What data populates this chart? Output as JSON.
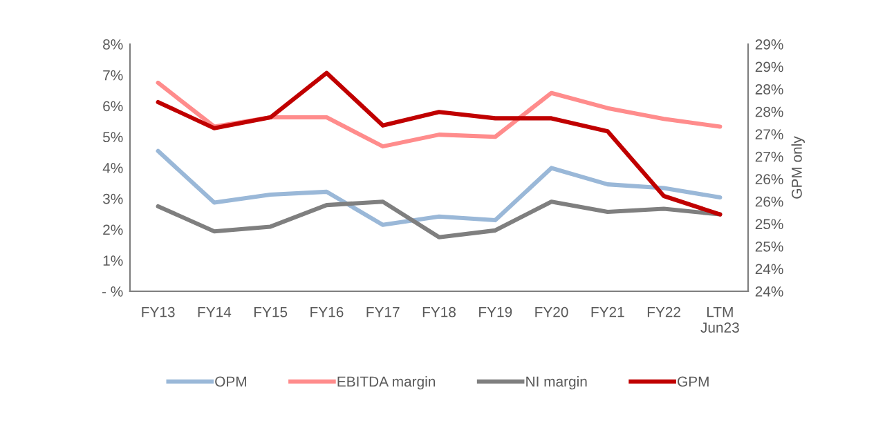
{
  "chart_data": {
    "type": "line",
    "categories": [
      "FY13",
      "FY14",
      "FY15",
      "FY16",
      "FY17",
      "FY18",
      "FY19",
      "FY20",
      "FY21",
      "FY22",
      "LTM\nJun23"
    ],
    "series": [
      {
        "name": "OPM",
        "color": "#9ab8d8",
        "values": [
          4.54,
          2.87,
          3.13,
          3.22,
          2.15,
          2.42,
          2.3,
          3.99,
          3.46,
          3.34,
          3.04
        ]
      },
      {
        "name": "EBITDA margin",
        "color": "#ff8c8c",
        "values": [
          6.75,
          5.33,
          5.63,
          5.63,
          4.69,
          5.07,
          5.0,
          6.42,
          5.93,
          5.58,
          5.33
        ]
      },
      {
        "name": "NI margin",
        "color": "#7f7f7f",
        "values": [
          2.75,
          1.94,
          2.09,
          2.79,
          2.9,
          1.75,
          1.97,
          2.9,
          2.57,
          2.67,
          2.49
        ]
      },
      {
        "name": "GPM",
        "color": "#c00000",
        "axis": "y2",
        "values": [
          27.71,
          27.13,
          27.37,
          28.36,
          27.19,
          27.49,
          27.35,
          27.35,
          27.06,
          25.62,
          25.21
        ]
      }
    ],
    "ylim": [
      0,
      8
    ],
    "yticks": [
      {
        "value": 0,
        "label": "- %"
      },
      {
        "value": 1,
        "label": "1%"
      },
      {
        "value": 2,
        "label": "2%"
      },
      {
        "value": 3,
        "label": "3%"
      },
      {
        "value": 4,
        "label": "4%"
      },
      {
        "value": 5,
        "label": "5%"
      },
      {
        "value": 6,
        "label": "6%"
      },
      {
        "value": 7,
        "label": "7%"
      },
      {
        "value": 8,
        "label": "8%"
      }
    ],
    "y2lim": [
      23.5,
      29
    ],
    "y2ticks": [
      {
        "value": 23.5,
        "label": "24%"
      },
      {
        "value": 24,
        "label": "24%"
      },
      {
        "value": 24.5,
        "label": "25%"
      },
      {
        "value": 25,
        "label": "25%"
      },
      {
        "value": 25.5,
        "label": "26%"
      },
      {
        "value": 26,
        "label": "26%"
      },
      {
        "value": 26.5,
        "label": "27%"
      },
      {
        "value": 27,
        "label": "27%"
      },
      {
        "value": 27.5,
        "label": "28%"
      },
      {
        "value": 28,
        "label": "28%"
      },
      {
        "value": 28.5,
        "label": "29%"
      },
      {
        "value": 29,
        "label": "29%"
      }
    ],
    "y2label": "GPM only",
    "grid": false,
    "legend": "bottom",
    "marker": "none",
    "line_style": "solid"
  }
}
